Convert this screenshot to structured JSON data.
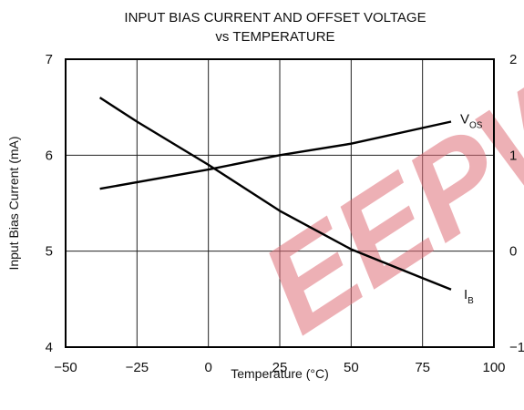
{
  "chart_data": {
    "type": "line",
    "title": "INPUT BIAS CURRENT AND OFFSET VOLTAGE",
    "subtitle": "vs TEMPERATURE",
    "xlabel": "Temperature (°C)",
    "ylabel": "Input Bias Current (mA)",
    "xlim": [
      -50,
      100
    ],
    "ylim": [
      4,
      7
    ],
    "y2lim": [
      -1,
      2
    ],
    "x_ticks": [
      "−50",
      "−25",
      "0",
      "25",
      "50",
      "75",
      "100"
    ],
    "y_ticks": [
      "4",
      "5",
      "6",
      "7"
    ],
    "y2_ticks": [
      "−1",
      "0",
      "1",
      "2"
    ],
    "grid": true,
    "series": [
      {
        "name": "IB",
        "label_main": "I",
        "label_sub": "B",
        "axis": "left",
        "x": [
          -38,
          -25,
          0,
          25,
          50,
          75,
          85
        ],
        "y": [
          6.6,
          6.35,
          5.9,
          5.42,
          5.02,
          4.72,
          4.6
        ]
      },
      {
        "name": "VOS",
        "label_main": "V",
        "label_sub": "OS",
        "axis": "right",
        "x": [
          -38,
          0,
          25,
          50,
          85
        ],
        "y": [
          0.65,
          0.85,
          1.0,
          1.12,
          1.35
        ]
      }
    ],
    "watermark": {
      "color": "#e0707a"
    }
  }
}
